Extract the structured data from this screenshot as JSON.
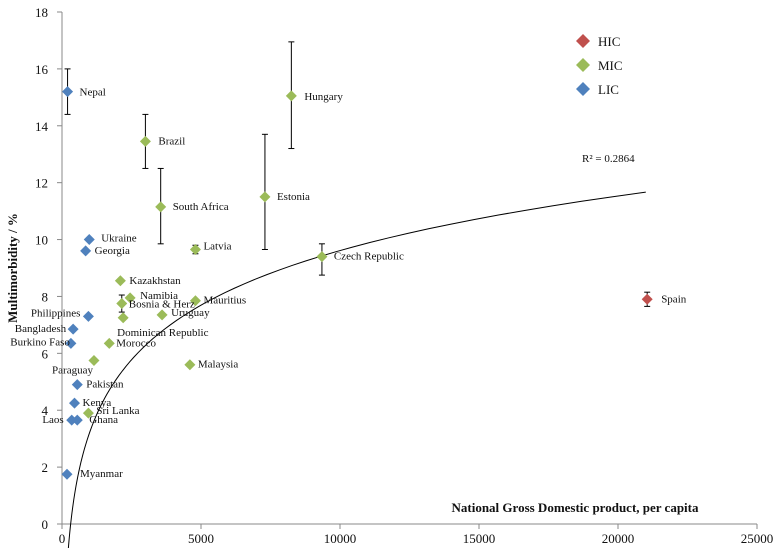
{
  "chart_data": {
    "type": "scatter",
    "xlabel": "National Gross Domestic product,  per capita",
    "ylabel": "Multimorbidity / %",
    "xlim": [
      0,
      25000
    ],
    "ylim": [
      0,
      18
    ],
    "x_ticks": [
      0,
      5000,
      10000,
      15000,
      20000,
      25000
    ],
    "y_ticks": [
      0,
      2,
      4,
      6,
      8,
      10,
      12,
      14,
      16,
      18
    ],
    "grid": false,
    "legend_position": "top-right",
    "legend": [
      {
        "group": "HIC",
        "label": "HIC",
        "color": "#c0504d"
      },
      {
        "group": "MIC",
        "label": "MIC",
        "color": "#9bbb59"
      },
      {
        "group": "LIC",
        "label": "LIC",
        "color": "#4f81bd"
      }
    ],
    "trendline": {
      "type": "logarithmic",
      "r2_label": "R² = 0.2864",
      "a": 2.77,
      "b": -15.9,
      "x_start": 200,
      "x_end": 21000
    },
    "points": [
      {
        "name": "Nepal",
        "group": "LIC",
        "x": 200,
        "y": 15.2,
        "err_low": 14.4,
        "err_high": 16.0
      },
      {
        "name": "Hungary",
        "group": "MIC",
        "x": 8250,
        "y": 15.05,
        "err_low": 13.2,
        "err_high": 16.95
      },
      {
        "name": "Brazil",
        "group": "MIC",
        "x": 3000,
        "y": 13.45,
        "err_low": 12.5,
        "err_high": 14.4
      },
      {
        "name": "South Africa",
        "group": "MIC",
        "x": 3550,
        "y": 11.15,
        "err_low": 9.85,
        "err_high": 12.5
      },
      {
        "name": "Estonia",
        "group": "MIC",
        "x": 7300,
        "y": 11.5,
        "err_low": 9.65,
        "err_high": 13.7
      },
      {
        "name": "Ukraine",
        "group": "LIC",
        "x": 980,
        "y": 10.0
      },
      {
        "name": "Georgia",
        "group": "LIC",
        "x": 850,
        "y": 9.6
      },
      {
        "name": "Latvia",
        "group": "MIC",
        "x": 4800,
        "y": 9.65,
        "err_low": 9.5,
        "err_high": 9.8
      },
      {
        "name": "Czech Republic",
        "group": "MIC",
        "x": 9350,
        "y": 9.4,
        "err_low": 8.75,
        "err_high": 9.85
      },
      {
        "name": "Kazakhstan",
        "group": "MIC",
        "x": 2100,
        "y": 8.55
      },
      {
        "name": "Namibia",
        "group": "MIC",
        "x": 2450,
        "y": 7.95
      },
      {
        "name": "Bosnia & Herz",
        "group": "MIC",
        "x": 2150,
        "y": 7.75,
        "err_low": 7.45,
        "err_high": 8.05
      },
      {
        "name": "Mauritius",
        "group": "MIC",
        "x": 4800,
        "y": 7.85
      },
      {
        "name": "Spain",
        "group": "HIC",
        "x": 21050,
        "y": 7.9,
        "err_low": 7.65,
        "err_high": 8.15
      },
      {
        "name": "Philippines",
        "group": "LIC",
        "x": 950,
        "y": 7.3
      },
      {
        "name": "Uruguay",
        "group": "MIC",
        "x": 3600,
        "y": 7.35
      },
      {
        "name": "Dominican Republic",
        "group": "MIC",
        "x": 2200,
        "y": 7.25
      },
      {
        "name": "Bangladesh",
        "group": "LIC",
        "x": 400,
        "y": 6.85
      },
      {
        "name": "Burkino Faso",
        "group": "LIC",
        "x": 320,
        "y": 6.35
      },
      {
        "name": "Morocco",
        "group": "MIC",
        "x": 1700,
        "y": 6.35
      },
      {
        "name": "Paraguay",
        "group": "MIC",
        "x": 1150,
        "y": 5.75
      },
      {
        "name": "Malaysia",
        "group": "MIC",
        "x": 4600,
        "y": 5.6
      },
      {
        "name": "Pakistan",
        "group": "LIC",
        "x": 550,
        "y": 4.9
      },
      {
        "name": "Kenya",
        "group": "LIC",
        "x": 450,
        "y": 4.25
      },
      {
        "name": "Sri Lanka",
        "group": "MIC",
        "x": 950,
        "y": 3.9
      },
      {
        "name": "Laos",
        "group": "LIC",
        "x": 350,
        "y": 3.65
      },
      {
        "name": "Ghana",
        "group": "LIC",
        "x": 550,
        "y": 3.65
      },
      {
        "name": "Myanmar",
        "group": "LIC",
        "x": 180,
        "y": 1.75
      }
    ]
  }
}
